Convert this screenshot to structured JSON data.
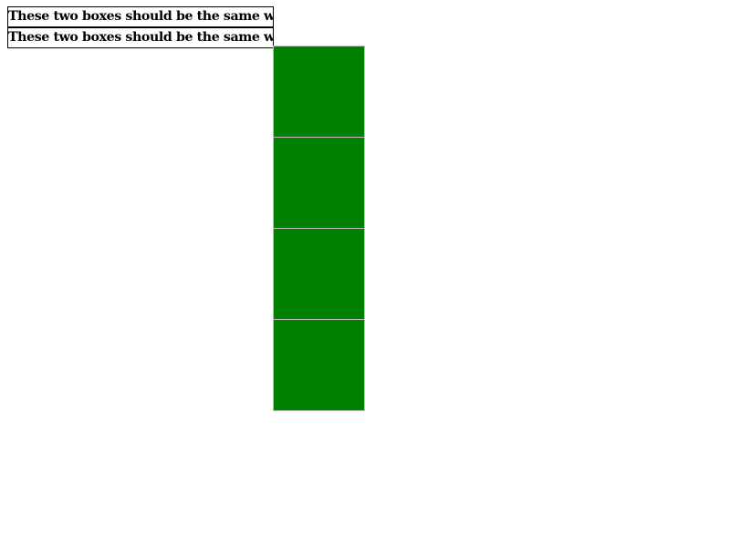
{
  "text_boxes": [
    {
      "text": "These two boxes should be the same width."
    },
    {
      "text": "These two boxes should be the same width."
    }
  ],
  "blocks": {
    "count": 4,
    "fill_color": "#008000",
    "border_color": "#c0c0c0"
  }
}
